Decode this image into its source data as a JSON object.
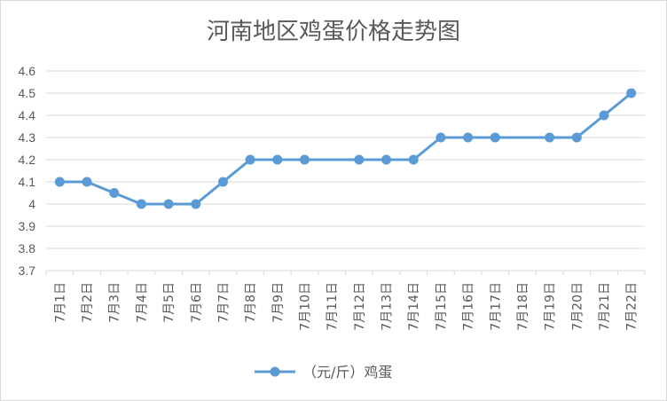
{
  "chart_data": {
    "type": "line",
    "title": "河南地区鸡蛋价格走势图",
    "xlabel": "",
    "ylabel": "",
    "categories": [
      "7月1日",
      "7月2日",
      "7月3日",
      "7月4日",
      "7月5日",
      "7月6日",
      "7月7日",
      "7月8日",
      "7月9日",
      "7月10日",
      "7月11日",
      "7月12日",
      "7月13日",
      "7月14日",
      "7月15日",
      "7月16日",
      "7月17日",
      "7月18日",
      "7月19日",
      "7月20日",
      "7月21日",
      "7月22日"
    ],
    "series": [
      {
        "name": "（元/斤）鸡蛋",
        "values": [
          4.1,
          4.1,
          4.05,
          4.0,
          4.0,
          4.0,
          4.1,
          4.2,
          4.2,
          4.2,
          null,
          4.2,
          4.2,
          4.2,
          4.3,
          4.3,
          4.3,
          null,
          4.3,
          4.3,
          4.4,
          4.5
        ],
        "color": "#5b9bd5"
      }
    ],
    "ylim": [
      3.7,
      4.6
    ],
    "yticks": [
      "4.6",
      "4.5",
      "4.4",
      "4.3",
      "4.2",
      "4.1",
      "4",
      "3.9",
      "3.8",
      "3.7"
    ],
    "grid": true,
    "legend_position": "bottom"
  }
}
